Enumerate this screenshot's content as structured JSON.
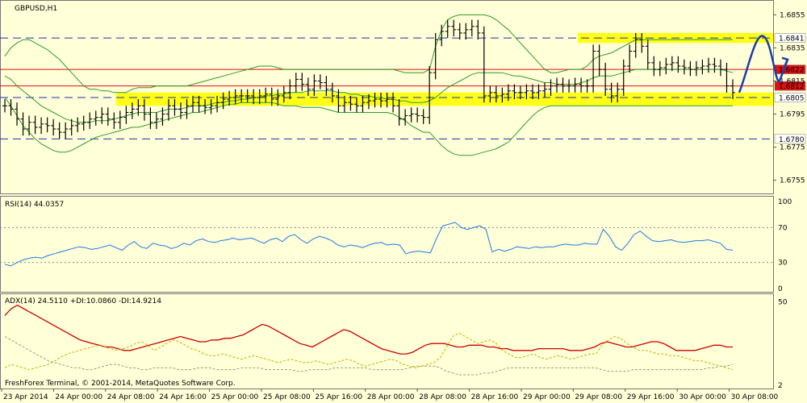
{
  "chart_data": [
    {
      "type": "line",
      "panel": "price",
      "title": "GBPUSD,H1",
      "y_ticks": [
        "1.6855",
        "1.6835",
        "1.6815",
        "1.6795",
        "1.6775",
        "1.6755"
      ],
      "ylim": [
        1.6748,
        1.6862
      ],
      "horizontal_levels": [
        {
          "label": "1.6841",
          "value": 1.6841,
          "style": "dashed-blue",
          "tag_color": "#ffffff",
          "tag_text_color": "#000000"
        },
        {
          "label": "1.6822",
          "value": 1.6822,
          "style": "solid-red",
          "tag_color": "#e01010",
          "tag_text_color": "#ffffff"
        },
        {
          "label": "1.6812",
          "value": 1.6812,
          "style": "solid-red",
          "tag_color": "#e01010",
          "tag_text_color": "#ffffff"
        },
        {
          "label": "1.6805",
          "value": 1.6805,
          "style": "dashed-blue",
          "tag_color": "#ffffff",
          "tag_text_color": "#000000"
        },
        {
          "label": "1.6780",
          "value": 1.678,
          "style": "dashed-blue",
          "tag_color": "#ffffff",
          "tag_text_color": "#000000"
        }
      ],
      "zones": [
        {
          "from": 1.68,
          "to": 1.6808,
          "color": "#ffff00"
        },
        {
          "from": 1.6838,
          "to": 1.6844,
          "color": "#ffff00"
        }
      ],
      "close": [
        1.68,
        1.6798,
        1.6792,
        1.6786,
        1.679,
        1.6787,
        1.6789,
        1.6788,
        1.6786,
        1.6784,
        1.6786,
        1.6788,
        1.6789,
        1.679,
        1.6792,
        1.6793,
        1.6795,
        1.6792,
        1.679,
        1.6793,
        1.6796,
        1.6798,
        1.68,
        1.6795,
        1.679,
        1.6792,
        1.6795,
        1.68,
        1.6798,
        1.6796,
        1.68,
        1.6802,
        1.68,
        1.6799,
        1.68,
        1.6802,
        1.6804,
        1.6805,
        1.6806,
        1.6806,
        1.6806,
        1.6805,
        1.6806,
        1.6807,
        1.6804,
        1.6806,
        1.6808,
        1.6812,
        1.6816,
        1.6813,
        1.681,
        1.6815,
        1.6814,
        1.681,
        1.6806,
        1.68,
        1.6802,
        1.6801,
        1.68,
        1.6802,
        1.6803,
        1.6804,
        1.6803,
        1.6804,
        1.68,
        1.6792,
        1.6794,
        1.6795,
        1.6794,
        1.6793,
        1.682,
        1.684,
        1.6845,
        1.6848,
        1.6846,
        1.6844,
        1.6846,
        1.6848,
        1.6844,
        1.6806,
        1.6808,
        1.6806,
        1.6807,
        1.6809,
        1.6808,
        1.6808,
        1.6809,
        1.6808,
        1.6809,
        1.681,
        1.6812,
        1.6813,
        1.6812,
        1.6812,
        1.6813,
        1.6812,
        1.6812,
        1.6833,
        1.6822,
        1.681,
        1.6806,
        1.681,
        1.6824,
        1.6833,
        1.684,
        1.6836,
        1.6826,
        1.6822,
        1.6823,
        1.6825,
        1.6826,
        1.6824,
        1.6823,
        1.6822,
        1.6823,
        1.6824,
        1.6825,
        1.6824,
        1.6822,
        1.6812,
        1.6808
      ],
      "upper_band": [
        1.683,
        1.6835,
        1.6838,
        1.684,
        1.684,
        1.6838,
        1.6836,
        1.6834,
        1.6831,
        1.6828,
        1.6824,
        1.682,
        1.6816,
        1.6812,
        1.681,
        1.681,
        1.6809,
        1.6809,
        1.6808,
        1.6808,
        1.6808,
        1.681,
        1.6811,
        1.6811,
        1.6811,
        1.6812,
        1.6812,
        1.6812,
        1.6812,
        1.6812,
        1.6812,
        1.6813,
        1.6814,
        1.6815,
        1.6816,
        1.6817,
        1.6818,
        1.6819,
        1.682,
        1.6821,
        1.6822,
        1.6823,
        1.6824,
        1.6824,
        1.6824,
        1.6823,
        1.6822,
        1.6822,
        1.6822,
        1.6822,
        1.6822,
        1.6822,
        1.6822,
        1.6822,
        1.6822,
        1.6822,
        1.6822,
        1.6822,
        1.6822,
        1.6822,
        1.6822,
        1.6822,
        1.6822,
        1.6822,
        1.6822,
        1.6821,
        1.682,
        1.682,
        1.682,
        1.682,
        1.6822,
        1.6836,
        1.6846,
        1.6852,
        1.6854,
        1.6855,
        1.6855,
        1.6855,
        1.6855,
        1.6855,
        1.6854,
        1.6852,
        1.6849,
        1.6846,
        1.6842,
        1.6838,
        1.6834,
        1.683,
        1.6826,
        1.6822,
        1.682,
        1.682,
        1.6821,
        1.6822,
        1.6822,
        1.6822,
        1.6824,
        1.6828,
        1.683,
        1.6831,
        1.6832,
        1.6834,
        1.6836,
        1.6838,
        1.684,
        1.684,
        1.684,
        1.684,
        1.684,
        1.684,
        1.684,
        1.684,
        1.684,
        1.684,
        1.684,
        1.684,
        1.684,
        1.684,
        1.684,
        1.684,
        1.684
      ],
      "middle_band": [
        1.6818,
        1.6816,
        1.6812,
        1.6809,
        1.6806,
        1.6803,
        1.68,
        1.6798,
        1.6796,
        1.6794,
        1.6792,
        1.6791,
        1.679,
        1.679,
        1.679,
        1.6791,
        1.6791,
        1.6791,
        1.6792,
        1.6793,
        1.6794,
        1.6795,
        1.6796,
        1.6796,
        1.6796,
        1.6796,
        1.6797,
        1.6798,
        1.6798,
        1.6798,
        1.6799,
        1.68,
        1.68,
        1.68,
        1.6801,
        1.6802,
        1.6802,
        1.6803,
        1.6803,
        1.6804,
        1.6804,
        1.6805,
        1.6805,
        1.6806,
        1.6806,
        1.6807,
        1.6807,
        1.6808,
        1.6808,
        1.6808,
        1.6809,
        1.6809,
        1.6809,
        1.6809,
        1.6809,
        1.6808,
        1.6808,
        1.6807,
        1.6807,
        1.6806,
        1.6806,
        1.6805,
        1.6805,
        1.6804,
        1.6804,
        1.6803,
        1.6803,
        1.6802,
        1.6802,
        1.6802,
        1.6803,
        1.6805,
        1.6808,
        1.6811,
        1.6813,
        1.6815,
        1.6817,
        1.6819,
        1.682,
        1.682,
        1.682,
        1.682,
        1.682,
        1.6819,
        1.6818,
        1.6818,
        1.6817,
        1.6816,
        1.6815,
        1.6814,
        1.6814,
        1.6813,
        1.6813,
        1.6813,
        1.6813,
        1.6814,
        1.6815,
        1.6817,
        1.6818,
        1.6818,
        1.6818,
        1.6819,
        1.682,
        1.6821,
        1.6822,
        1.6822,
        1.6822,
        1.6822,
        1.6822,
        1.6822,
        1.6822,
        1.6822,
        1.6822,
        1.6822,
        1.6822,
        1.6822,
        1.6822,
        1.6822,
        1.6822,
        1.6821,
        1.682
      ],
      "lower_band": [
        1.6805,
        1.68,
        1.6794,
        1.6788,
        1.6784,
        1.678,
        1.6777,
        1.6775,
        1.6773,
        1.6772,
        1.6772,
        1.6773,
        1.6775,
        1.6777,
        1.6779,
        1.6781,
        1.6782,
        1.6783,
        1.6784,
        1.6785,
        1.6786,
        1.6787,
        1.6787,
        1.6788,
        1.6789,
        1.679,
        1.6791,
        1.6792,
        1.6793,
        1.6794,
        1.6795,
        1.6796,
        1.6796,
        1.6797,
        1.6798,
        1.6799,
        1.68,
        1.6801,
        1.6801,
        1.6802,
        1.6802,
        1.6802,
        1.6802,
        1.6802,
        1.6802,
        1.6801,
        1.68,
        1.68,
        1.68,
        1.6799,
        1.6799,
        1.6799,
        1.6799,
        1.6798,
        1.6797,
        1.6796,
        1.6796,
        1.6796,
        1.6796,
        1.6796,
        1.6796,
        1.6796,
        1.6796,
        1.6796,
        1.6795,
        1.6793,
        1.6791,
        1.6788,
        1.6786,
        1.6784,
        1.6784,
        1.678,
        1.6776,
        1.6773,
        1.6771,
        1.677,
        1.677,
        1.677,
        1.6771,
        1.6772,
        1.6773,
        1.6774,
        1.6776,
        1.6778,
        1.6782,
        1.6786,
        1.679,
        1.6794,
        1.6797,
        1.6799,
        1.68,
        1.68,
        1.68,
        1.68,
        1.68,
        1.68,
        1.68,
        1.68,
        1.68,
        1.68,
        1.68,
        1.68,
        1.68,
        1.68,
        1.68,
        1.68,
        1.68,
        1.68,
        1.68,
        1.68,
        1.68,
        1.68,
        1.68,
        1.68,
        1.68,
        1.68,
        1.68,
        1.68,
        1.68,
        1.68,
        1.68
      ],
      "projection": [
        [
          1.6808,
          0
        ],
        [
          1.6842,
          6
        ],
        [
          1.6815,
          10
        ],
        [
          1.6828,
          12
        ]
      ]
    },
    {
      "type": "line",
      "panel": "rsi",
      "title": "RSI(14) 44.0357",
      "y_ticks": [
        "100",
        "70",
        "30",
        "0"
      ],
      "ylim": [
        0,
        100
      ],
      "levels": [
        70,
        30
      ],
      "values": [
        28,
        26,
        30,
        33,
        35,
        36,
        35,
        38,
        40,
        42,
        44,
        46,
        48,
        47,
        45,
        46,
        48,
        50,
        47,
        44,
        50,
        54,
        48,
        46,
        52,
        50,
        49,
        46,
        48,
        52,
        50,
        55,
        57,
        54,
        53,
        55,
        56,
        58,
        56,
        57,
        58,
        55,
        52,
        56,
        58,
        54,
        60,
        62,
        56,
        52,
        57,
        60,
        58,
        55,
        50,
        48,
        50,
        49,
        47,
        50,
        52,
        53,
        50,
        51,
        50,
        40,
        42,
        43,
        42,
        41,
        58,
        72,
        74,
        76,
        70,
        68,
        70,
        72,
        68,
        42,
        45,
        43,
        45,
        48,
        47,
        46,
        48,
        47,
        48,
        48,
        50,
        51,
        50,
        50,
        52,
        51,
        51,
        68,
        60,
        48,
        44,
        52,
        62,
        66,
        60,
        55,
        54,
        55,
        56,
        54,
        53,
        54,
        55,
        55,
        56,
        54,
        52,
        45,
        44
      ]
    },
    {
      "type": "line",
      "panel": "adx",
      "title": "ADX(14) 24.5110 +DI:10.0860 -DI:14.9214",
      "y_ticks": [
        "50",
        "2"
      ],
      "ylim": [
        2,
        52
      ],
      "series": [
        {
          "name": "ADX",
          "color": "#cc0000",
          "values": [
            42,
            46,
            48,
            46,
            44,
            42,
            40,
            38,
            36,
            34,
            32,
            30,
            28,
            27,
            26,
            25,
            24,
            24,
            23,
            22,
            22,
            23,
            24,
            25,
            26,
            27,
            28,
            29,
            30,
            29,
            28,
            27,
            27,
            28,
            28,
            29,
            29,
            30,
            31,
            33,
            35,
            37,
            36,
            34,
            32,
            30,
            28,
            26,
            25,
            24,
            26,
            28,
            30,
            32,
            34,
            33,
            31,
            29,
            27,
            25,
            23,
            22,
            21,
            20,
            20,
            21,
            23,
            25,
            26,
            26,
            26,
            25,
            24,
            24,
            25,
            25,
            25,
            24,
            24,
            23,
            23,
            22,
            22,
            22,
            22,
            23,
            23,
            23,
            23,
            23,
            22,
            22,
            22,
            23,
            24,
            26,
            27,
            26,
            25,
            24,
            24,
            25,
            26,
            27,
            27,
            26,
            24,
            22,
            22,
            22,
            22,
            23,
            24,
            25,
            25,
            24,
            24
          ]
        },
        {
          "name": "+DI",
          "color": "#c8b000",
          "values": [
            12,
            14,
            13,
            12,
            11,
            12,
            13,
            14,
            16,
            18,
            20,
            21,
            22,
            23,
            24,
            25,
            24,
            23,
            22,
            23,
            24,
            26,
            27,
            25,
            22,
            24,
            26,
            28,
            27,
            25,
            23,
            22,
            20,
            19,
            19,
            20,
            19,
            18,
            17,
            18,
            19,
            18,
            17,
            16,
            15,
            16,
            17,
            16,
            15,
            15,
            16,
            15,
            14,
            15,
            16,
            17,
            16,
            14,
            13,
            14,
            15,
            16,
            17,
            16,
            14,
            13,
            12,
            13,
            14,
            15,
            18,
            24,
            30,
            32,
            30,
            28,
            26,
            27,
            28,
            26,
            22,
            20,
            18,
            18,
            19,
            20,
            18,
            17,
            18,
            19,
            18,
            17,
            18,
            19,
            20,
            20,
            25,
            28,
            30,
            29,
            26,
            24,
            22,
            22,
            21,
            20,
            20,
            19,
            19,
            18,
            17,
            16,
            16,
            15,
            14,
            13,
            12,
            11
          ]
        },
        {
          "name": "-DI",
          "color": "#9aa070",
          "values": [
            30,
            28,
            26,
            24,
            22,
            20,
            18,
            16,
            15,
            14,
            13,
            12,
            12,
            11,
            11,
            12,
            13,
            14,
            14,
            13,
            12,
            12,
            11,
            11,
            12,
            12,
            12,
            12,
            11,
            11,
            11,
            12,
            12,
            12,
            11,
            11,
            11,
            11,
            12,
            12,
            12,
            12,
            11,
            11,
            11,
            11,
            11,
            10,
            10,
            11,
            11,
            11,
            11,
            12,
            12,
            12,
            12,
            12,
            12,
            11,
            11,
            11,
            11,
            11,
            11,
            12,
            13,
            13,
            13,
            13,
            12,
            10,
            9,
            8,
            8,
            8,
            8,
            9,
            9,
            10,
            11,
            12,
            12,
            12,
            12,
            12,
            12,
            12,
            12,
            12,
            12,
            12,
            12,
            12,
            12,
            12,
            11,
            10,
            10,
            10,
            10,
            11,
            11,
            11,
            11,
            11,
            11,
            11,
            11,
            11,
            11,
            11,
            11,
            12,
            12,
            13,
            13,
            14
          ]
        }
      ]
    }
  ],
  "x_ticks": [
    "23 Apr 2014",
    "24 Apr 00:00",
    "24 Apr 08:00",
    "24 Apr 16:00",
    "25 Apr 00:00",
    "25 Apr 08:00",
    "25 Apr 16:00",
    "28 Apr 00:00",
    "28 Apr 08:00",
    "28 Apr 16:00",
    "29 Apr 00:00",
    "29 Apr 08:00",
    "29 Apr 16:00",
    "30 Apr 00:00",
    "30 Apr 08:00"
  ],
  "footer": "FreshForex Terminal, © 2001-2014, MetaQuotes Software Corp.",
  "colors": {
    "background": "#ffffd8",
    "candles": "#000000",
    "bands": "#2e9a2e",
    "rsi": "#1e78e6",
    "projection": "#1a3fa8",
    "grid": "#8a8a8a"
  }
}
